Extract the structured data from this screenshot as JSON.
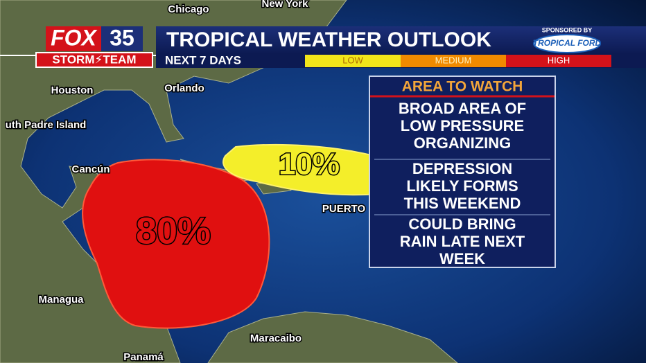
{
  "header": {
    "logo": {
      "network": "FOX",
      "channel": "35",
      "team": "STORM⚡TEAM"
    },
    "title": "TROPICAL WEATHER OUTLOOK",
    "subtitle": "NEXT 7 DAYS",
    "legend": [
      "LOW",
      "MEDIUM",
      "HIGH"
    ],
    "sponsor_label": "SPONSORED BY",
    "sponsor": "TROPICAL FORD"
  },
  "areas": [
    {
      "label": "80%"
    },
    {
      "label": "10%"
    }
  ],
  "cities": [
    "Chicago",
    "New York",
    "Houston",
    "Orlando",
    "uth Padre Island",
    "Cancún",
    "PUERTO",
    "Managua",
    "Maracaibo",
    "Panamá"
  ],
  "panel": {
    "title": "AREA TO WATCH",
    "items": [
      [
        "BROAD AREA OF",
        "LOW PRESSURE",
        "ORGANIZING"
      ],
      [
        "DEPRESSION",
        "LIKELY FORMS",
        "THIS WEEKEND"
      ],
      [
        "COULD BRING",
        "RAIN LATE NEXT",
        "WEEK"
      ]
    ]
  }
}
